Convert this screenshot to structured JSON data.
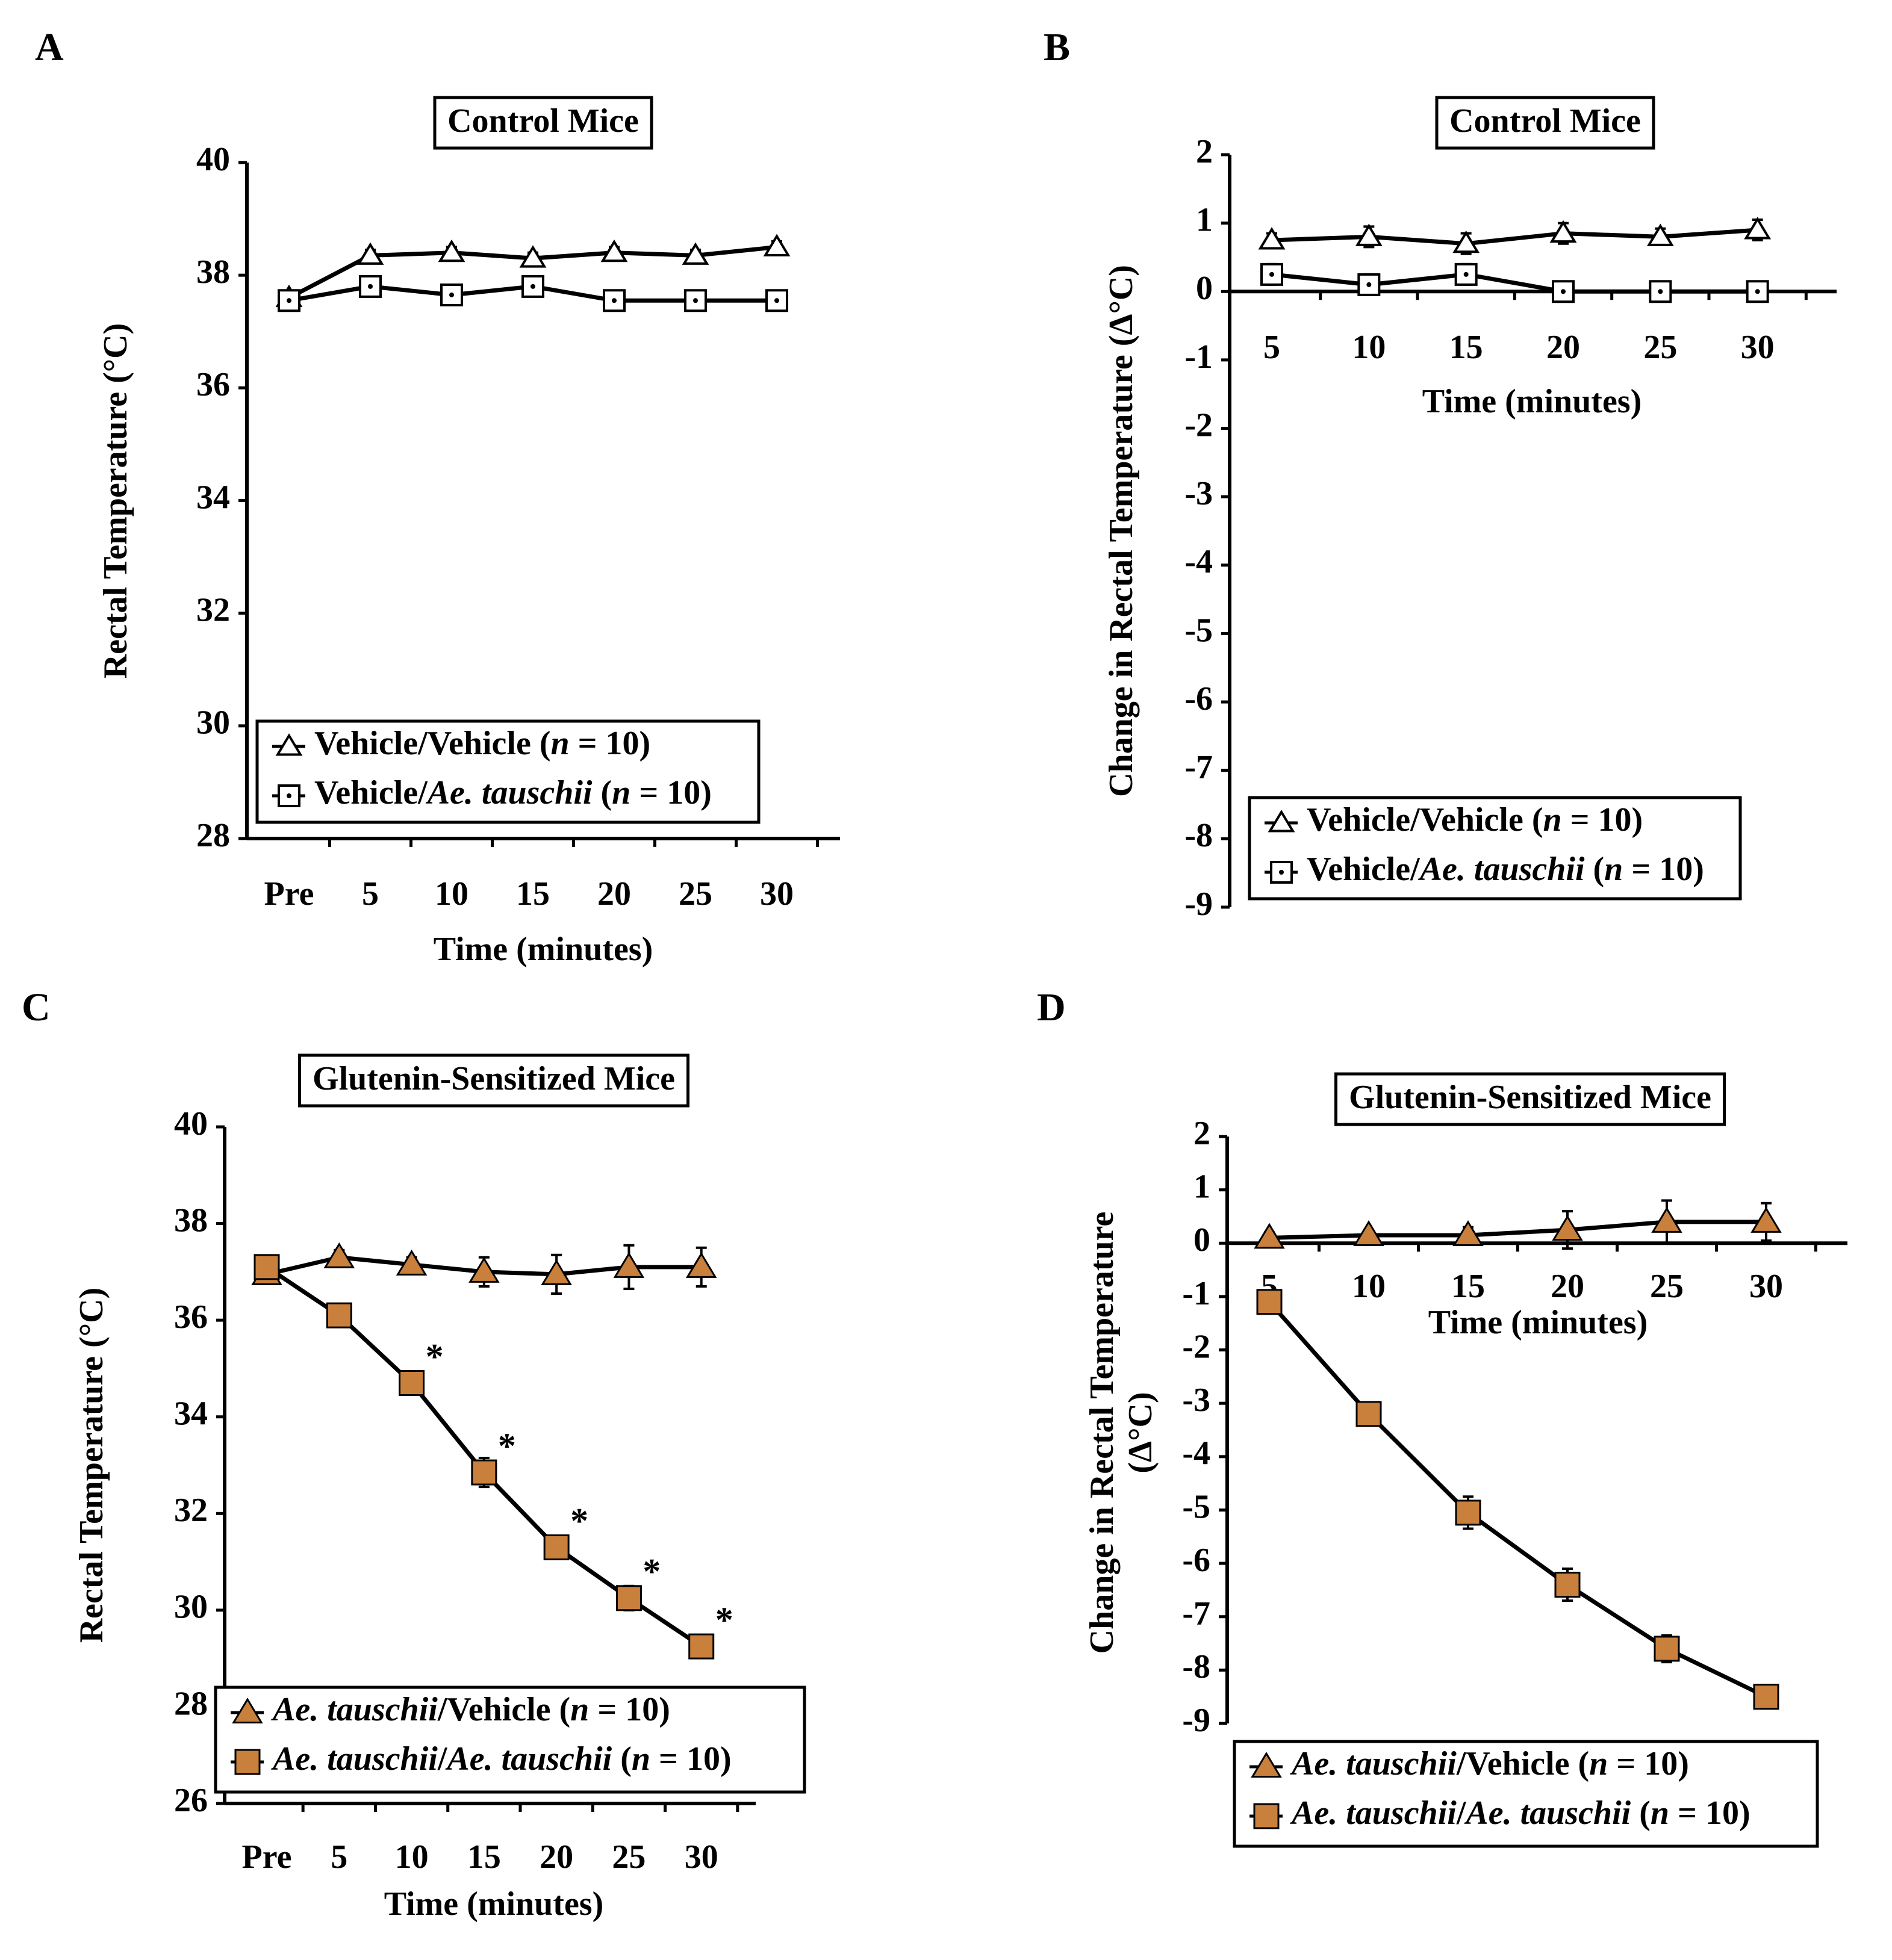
{
  "panels": [
    {
      "id": "A",
      "label": "A",
      "title": "Control Mice",
      "ylabel": "Rectal Temperature (°C)",
      "ylabel_lines": [
        "Rectal Temperature (°C)"
      ],
      "xlabel": "Time (minutes)",
      "categories": [
        "Pre",
        "5",
        "10",
        "15",
        "20",
        "25",
        "30"
      ],
      "ylim": [
        28,
        40
      ],
      "yticks": [
        "28",
        "30",
        "32",
        "34",
        "36",
        "38",
        "40"
      ],
      "filled": false,
      "legend": [
        {
          "marker": "triangle",
          "name": "Vehicle/Vehicle",
          "suffix": " (n = 10)"
        },
        {
          "marker": "square",
          "name": "Vehicle/Ae. tauschii",
          "suffix": " (n = 10)"
        }
      ]
    },
    {
      "id": "B",
      "label": "B",
      "title": "Control Mice",
      "ylabel": "Change in Rectal Temperature (Δ°C)",
      "ylabel_lines": [
        "Change in Rectal Temperature (Δ°C)"
      ],
      "xlabel": "Time (minutes)",
      "categories": [
        "5",
        "10",
        "15",
        "20",
        "25",
        "30"
      ],
      "ylim": [
        -9,
        2
      ],
      "yticks": [
        "-9",
        "-8",
        "-7",
        "-6",
        "-5",
        "-4",
        "-3",
        "-2",
        "-1",
        "0",
        "1",
        "2"
      ],
      "filled": false,
      "legend": [
        {
          "marker": "triangle",
          "name": "Vehicle/Vehicle",
          "suffix": " (n = 10)"
        },
        {
          "marker": "square",
          "name": "Vehicle/Ae. tauschii",
          "suffix": " (n = 10)"
        }
      ]
    },
    {
      "id": "C",
      "label": "C",
      "title": "Glutenin-Sensitized Mice",
      "ylabel": "Rectal Temperature (°C)",
      "ylabel_lines": [
        "Rectal Temperature (°C)"
      ],
      "xlabel": "Time (minutes)",
      "categories": [
        "Pre",
        "5",
        "10",
        "15",
        "20",
        "25",
        "30"
      ],
      "ylim": [
        26,
        40
      ],
      "yticks": [
        "26",
        "28",
        "30",
        "32",
        "34",
        "36",
        "38",
        "40"
      ],
      "filled": true,
      "legend": [
        {
          "marker": "triangle",
          "name": "Ae. tauschii/Vehicle",
          "suffix": " (n = 10)"
        },
        {
          "marker": "square",
          "name": "Ae. tauschii/Ae. tauschii",
          "suffix": " (n = 10)"
        }
      ],
      "significance": "*"
    },
    {
      "id": "D",
      "label": "D",
      "title": "Glutenin-Sensitized Mice",
      "ylabel": "Change in Rectal Temperature (Δ°C)",
      "ylabel_lines": [
        "Change in Rectal Temperature",
        "(Δ°C)"
      ],
      "xlabel": "Time (minutes)",
      "categories": [
        "5",
        "10",
        "15",
        "20",
        "25",
        "30"
      ],
      "ylim": [
        -9,
        2
      ],
      "yticks": [
        "-9",
        "-8",
        "-7",
        "-6",
        "-5",
        "-4",
        "-3",
        "-2",
        "-1",
        "0",
        "1",
        "2"
      ],
      "filled": true,
      "legend": [
        {
          "marker": "triangle",
          "name": "Ae. tauschii/Vehicle",
          "suffix": " (n = 10)"
        },
        {
          "marker": "square",
          "name": "Ae. tauschii/Ae. tauschii",
          "suffix": " (n = 10)"
        }
      ]
    }
  ],
  "colors": {
    "filled_marker": "#C8803C",
    "open_marker": "#FFFFFF",
    "line": "#000000"
  },
  "chart_data": [
    {
      "panel": "A",
      "type": "line",
      "title": "Control Mice",
      "xlabel": "Time (minutes)",
      "ylabel": "Rectal Temperature (°C)",
      "categories": [
        "Pre",
        "5",
        "10",
        "15",
        "20",
        "25",
        "30"
      ],
      "ylim": [
        28,
        40
      ],
      "series": [
        {
          "name": "Vehicle/Vehicle (n = 10)",
          "marker": "triangle",
          "values": [
            37.6,
            38.35,
            38.4,
            38.3,
            38.4,
            38.35,
            38.5
          ],
          "errors": [
            0.1,
            0.1,
            0.1,
            0.1,
            0.1,
            0.1,
            0.1
          ]
        },
        {
          "name": "Vehicle/Ae. tauschii (n = 10)",
          "marker": "square",
          "values": [
            37.55,
            37.8,
            37.65,
            37.8,
            37.55,
            37.55,
            37.55
          ],
          "errors": [
            0.1,
            0.1,
            0.1,
            0.1,
            0.1,
            0.1,
            0.15
          ]
        }
      ]
    },
    {
      "panel": "B",
      "type": "line",
      "title": "Control Mice",
      "xlabel": "Time (minutes)",
      "ylabel": "Change in Rectal Temperature (Δ°C)",
      "categories": [
        "5",
        "10",
        "15",
        "20",
        "25",
        "30"
      ],
      "ylim": [
        -9,
        2
      ],
      "series": [
        {
          "name": "Vehicle/Vehicle (n = 10)",
          "marker": "triangle",
          "values": [
            0.75,
            0.8,
            0.7,
            0.85,
            0.8,
            0.9
          ],
          "errors": [
            0.1,
            0.15,
            0.15,
            0.15,
            0.12,
            0.15
          ]
        },
        {
          "name": "Vehicle/Ae. tauschii (n = 10)",
          "marker": "square",
          "values": [
            0.25,
            0.1,
            0.25,
            0.0,
            0.0,
            0.0
          ],
          "errors": [
            0.15,
            0.15,
            0.15,
            0.05,
            0.08,
            0.1
          ]
        }
      ]
    },
    {
      "panel": "C",
      "type": "line",
      "title": "Glutenin-Sensitized Mice",
      "xlabel": "Time (minutes)",
      "ylabel": "Rectal Temperature (°C)",
      "categories": [
        "Pre",
        "5",
        "10",
        "15",
        "20",
        "25",
        "30"
      ],
      "ylim": [
        26,
        40
      ],
      "series": [
        {
          "name": "Ae. tauschii/Vehicle (n = 10)",
          "marker": "triangle",
          "values": [
            36.95,
            37.3,
            37.15,
            37.0,
            36.95,
            37.1,
            37.1
          ],
          "errors": [
            0.15,
            0.15,
            0.15,
            0.3,
            0.4,
            0.45,
            0.4
          ]
        },
        {
          "name": "Ae. tauschii/Ae. tauschii (n = 10)",
          "marker": "square",
          "values": [
            37.1,
            36.1,
            34.7,
            32.85,
            31.3,
            30.25,
            29.25
          ],
          "errors": [
            0.1,
            0.15,
            0.15,
            0.3,
            0.2,
            0.25,
            0.15
          ]
        }
      ],
      "significant_indices": [
        2,
        3,
        4,
        5,
        6
      ]
    },
    {
      "panel": "D",
      "type": "line",
      "title": "Glutenin-Sensitized Mice",
      "xlabel": "Time (minutes)",
      "ylabel": "Change in Rectal Temperature (Δ°C)",
      "categories": [
        "5",
        "10",
        "15",
        "20",
        "25",
        "30"
      ],
      "ylim": [
        -9,
        2
      ],
      "series": [
        {
          "name": "Ae. tauschii/Vehicle (n = 10)",
          "marker": "triangle",
          "values": [
            0.1,
            0.15,
            0.15,
            0.25,
            0.4,
            0.4
          ],
          "errors": [
            0.1,
            0.1,
            0.15,
            0.35,
            0.4,
            0.35
          ]
        },
        {
          "name": "Ae. tauschii/Ae. tauschii (n = 10)",
          "marker": "square",
          "values": [
            -1.1,
            -3.2,
            -5.05,
            -6.4,
            -7.6,
            -8.5
          ],
          "errors": [
            0.15,
            0.2,
            0.3,
            0.3,
            0.25,
            0.2
          ]
        }
      ]
    }
  ]
}
